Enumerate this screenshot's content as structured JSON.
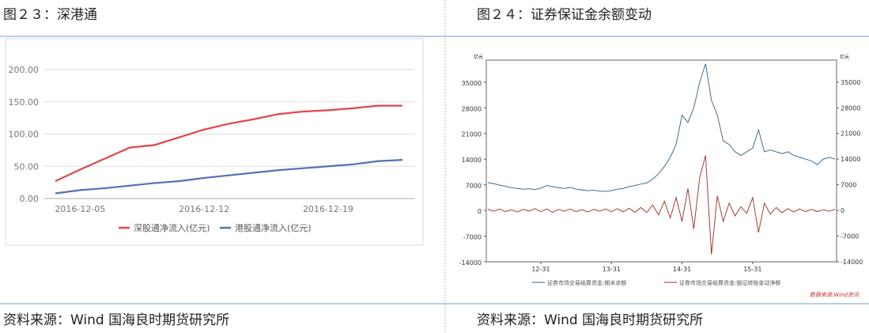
{
  "figures": [
    {
      "caption": "图２３：深港通",
      "source": "资料来源：Wind 国海良时期货研究所"
    },
    {
      "caption": "图２４：证券保证金余额变动",
      "source": "资料来源：Wind 国海良时期货研究所"
    }
  ],
  "chart_data": [
    {
      "type": "line",
      "categories": [
        null,
        "2016-12-05",
        null,
        null,
        null,
        null,
        "2016-12-12",
        null,
        null,
        null,
        null,
        "2016-12-19",
        null,
        null,
        null
      ],
      "series": [
        {
          "name": "深股通净流入(亿元)",
          "color": "#e0474c",
          "values": [
            27,
            45,
            62,
            79,
            83,
            95,
            107,
            116,
            123,
            131,
            135,
            137,
            140,
            144,
            144
          ]
        },
        {
          "name": "港股通净流入(亿元)",
          "color": "#5470b5",
          "values": [
            8,
            13,
            16,
            20,
            24,
            27,
            32,
            36,
            40,
            44,
            47,
            50,
            53,
            58,
            60
          ]
        }
      ],
      "ylim": [
        0,
        200
      ],
      "yticks": [
        {
          "value": 0,
          "label": "0.00"
        },
        {
          "value": 50,
          "label": "50.00"
        },
        {
          "value": 100,
          "label": "100.00"
        },
        {
          "value": 150,
          "label": "150.00"
        },
        {
          "value": 200,
          "label": "200.00"
        }
      ],
      "grid": true,
      "legend": "bottom"
    },
    {
      "type": "line",
      "y_label": "亿元",
      "y2_label": "亿元",
      "source": "数据来源:Wind资讯",
      "categories": [
        null,
        null,
        null,
        null,
        null,
        null,
        null,
        null,
        null,
        "12-31",
        null,
        null,
        null,
        null,
        null,
        null,
        null,
        null,
        null,
        null,
        null,
        "13-31",
        null,
        null,
        null,
        null,
        null,
        null,
        null,
        null,
        null,
        null,
        null,
        "14-31",
        null,
        null,
        null,
        null,
        null,
        null,
        null,
        null,
        null,
        null,
        null,
        "15-31",
        null,
        null,
        null,
        null,
        null,
        null,
        null,
        null,
        null,
        null,
        null,
        null,
        null,
        null
      ],
      "series": [
        {
          "name": "证券市场交易结算资金:期末余额",
          "color": "#2f5f86",
          "values": [
            7600,
            7300,
            6900,
            6600,
            6200,
            6000,
            5800,
            5900,
            5700,
            6100,
            6800,
            6500,
            6200,
            6000,
            6300,
            5800,
            5600,
            5400,
            5500,
            5300,
            5200,
            5400,
            5800,
            6000,
            6500,
            6800,
            7200,
            7500,
            8500,
            10000,
            12000,
            14500,
            18000,
            26000,
            24000,
            28000,
            35000,
            40000,
            30000,
            26000,
            19000,
            18000,
            16000,
            15000,
            16000,
            17000,
            22000,
            16000,
            16500,
            16000,
            15500,
            16000,
            15000,
            14500,
            14000,
            13500,
            12500,
            14000,
            14500,
            14000
          ]
        },
        {
          "name": "证券市场交易结算资金:银证转账变动净额",
          "color": "#9b2a22",
          "axis": "y2",
          "values": [
            300,
            -200,
            400,
            -300,
            200,
            -400,
            300,
            -200,
            500,
            -300,
            400,
            -500,
            300,
            -200,
            400,
            -300,
            200,
            -400,
            300,
            -200,
            400,
            -300,
            500,
            -400,
            600,
            -500,
            800,
            -600,
            1500,
            -1200,
            2500,
            -2000,
            3500,
            -3000,
            6000,
            -5000,
            9000,
            15000,
            -12000,
            4000,
            -3000,
            2000,
            -1500,
            1000,
            -800,
            3500,
            -6000,
            2000,
            -1000,
            800,
            -600,
            500,
            -400,
            400,
            -300,
            300,
            -300,
            200,
            -200,
            300
          ]
        }
      ],
      "ylim": [
        -14000,
        41000
      ],
      "yticks": [
        -14000,
        -7000,
        0,
        7000,
        14000,
        21000,
        28000,
        35000
      ],
      "y2lim": [
        -14000,
        41000
      ],
      "y2ticks": [
        -14000,
        -7000,
        0,
        7000,
        14000,
        21000,
        28000,
        35000
      ],
      "legend": "bottom"
    }
  ]
}
